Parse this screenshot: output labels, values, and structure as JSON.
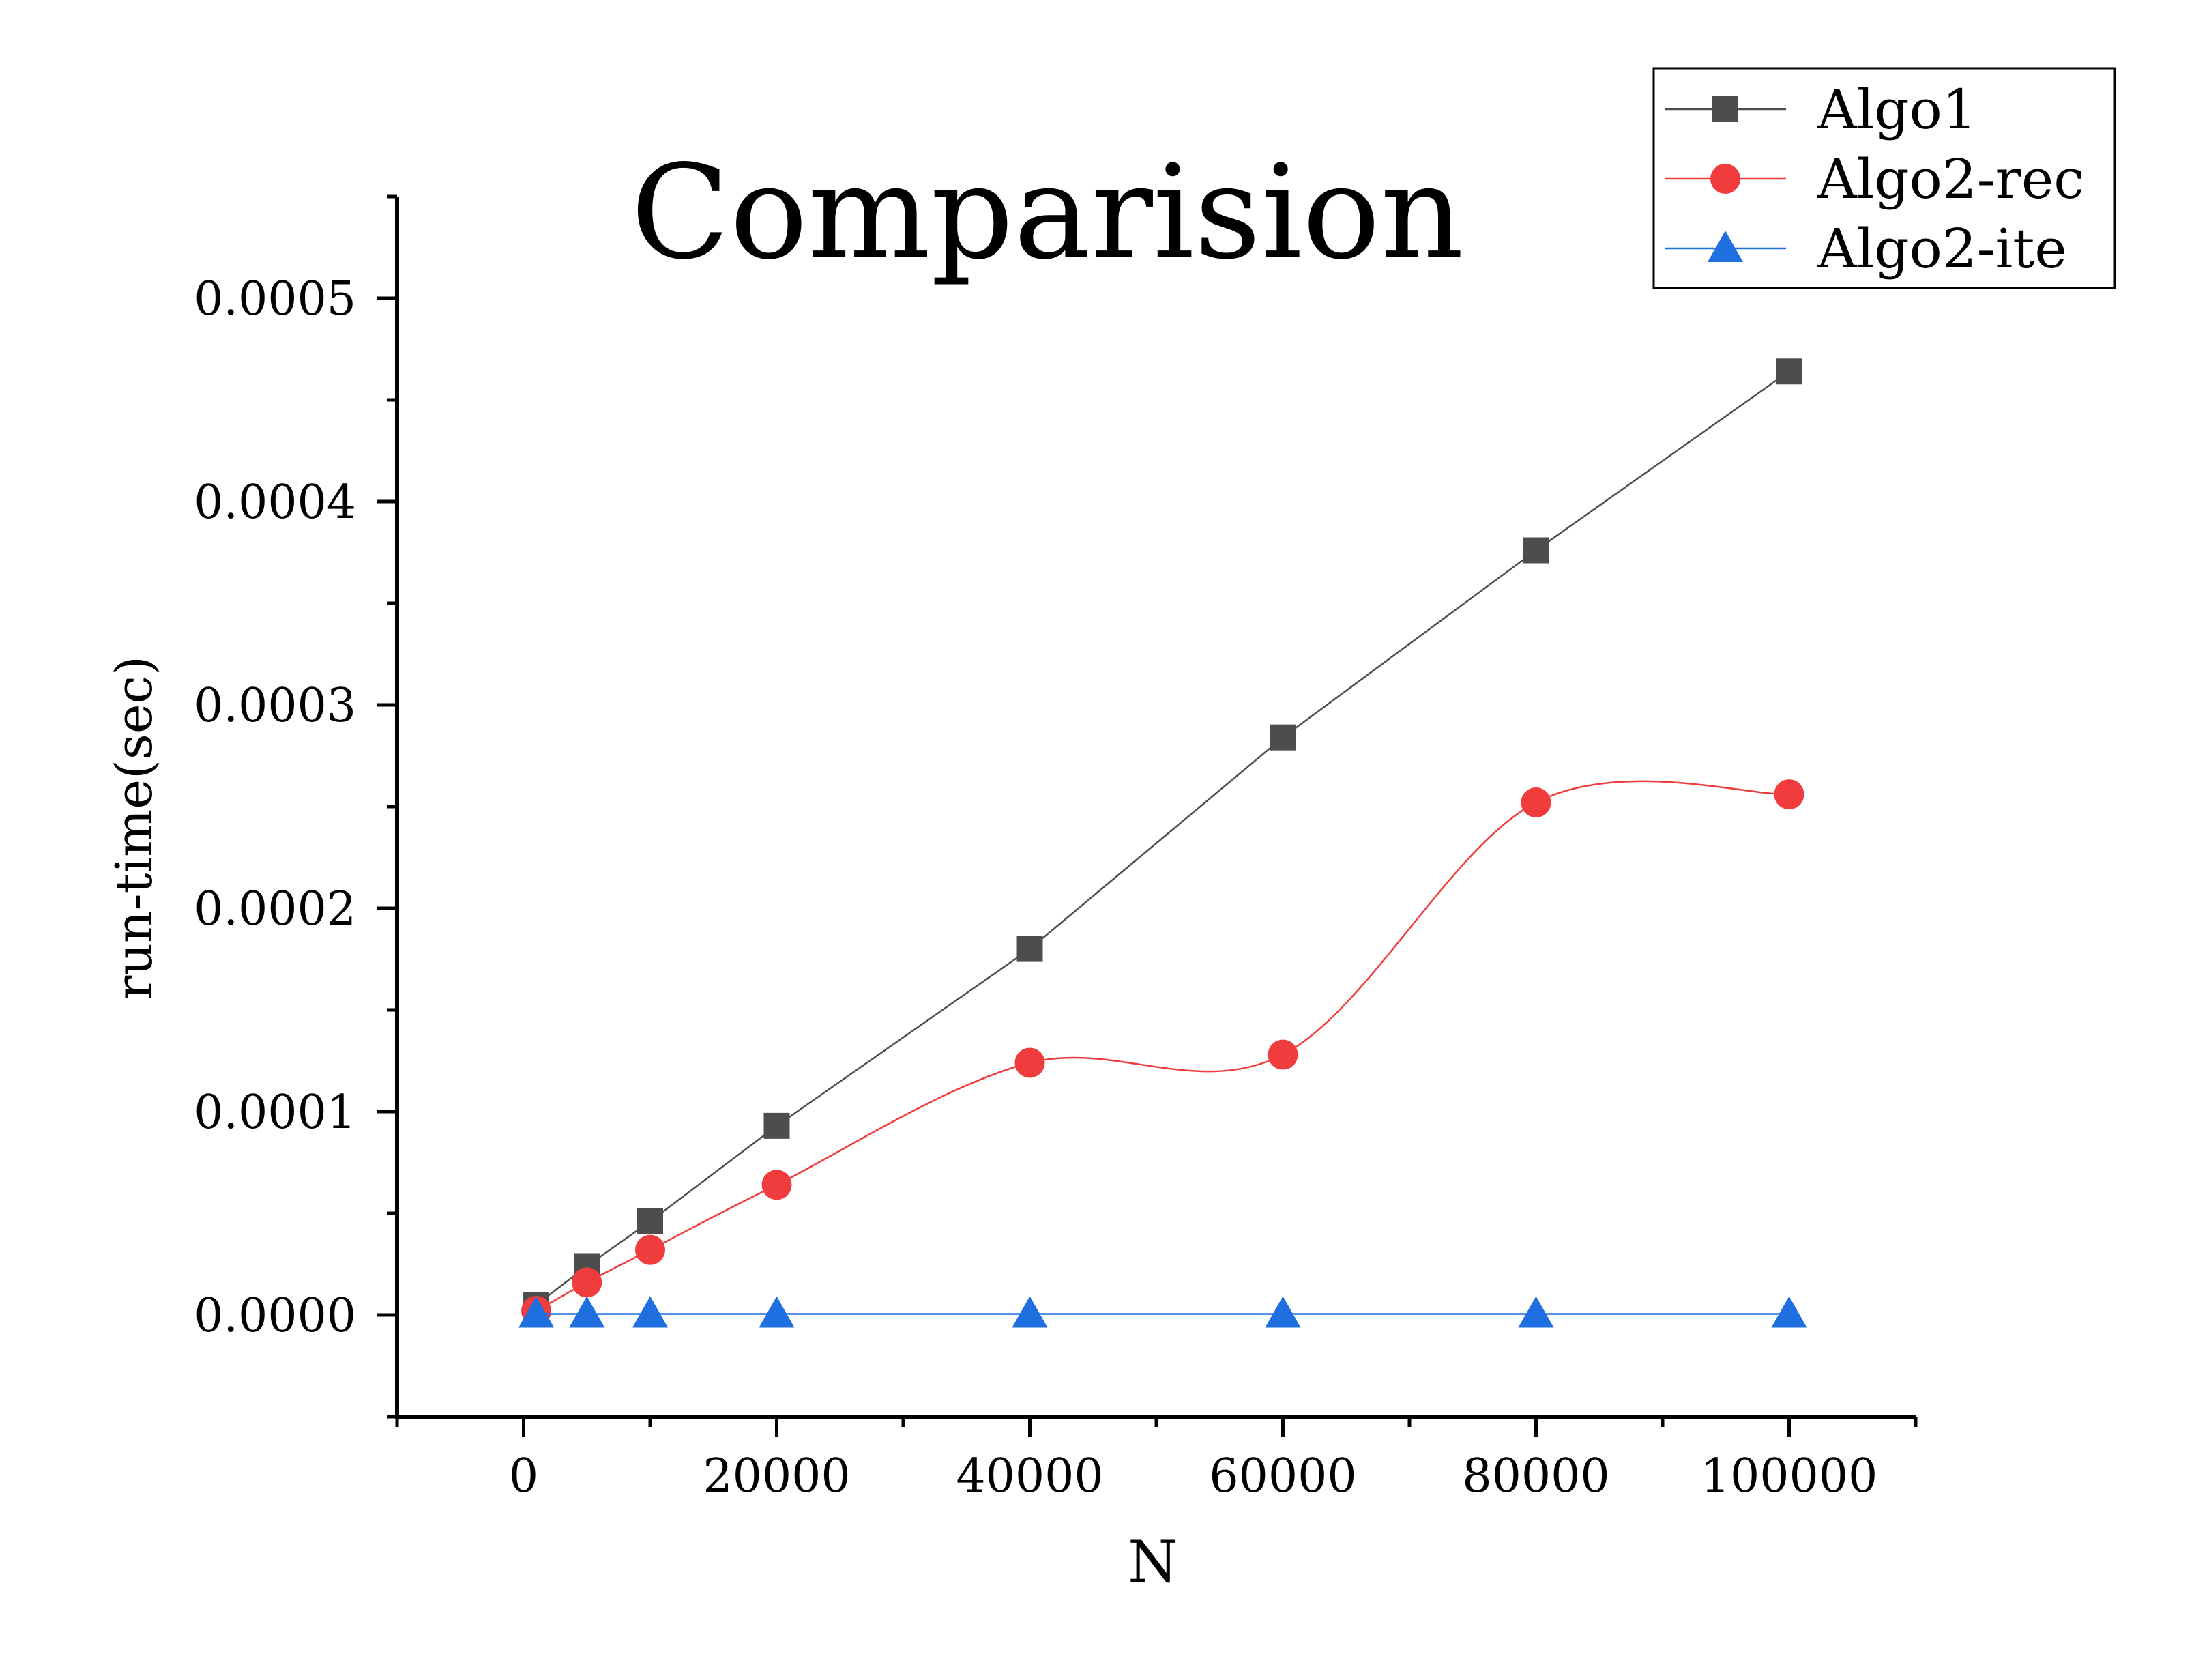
{
  "chart_data": {
    "type": "line",
    "title": "Comparision",
    "xlabel": "N",
    "ylabel": "run-time(sec)",
    "xlim": [
      -10000,
      110000
    ],
    "ylim": [
      -5e-05,
      0.00055
    ],
    "x_ticks": [
      0,
      20000,
      40000,
      60000,
      80000,
      100000
    ],
    "x_tick_labels": [
      "0",
      "20000",
      "40000",
      "60000",
      "80000",
      "100000"
    ],
    "y_ticks": [
      0,
      0.0001,
      0.0002,
      0.0003,
      0.0004,
      0.0005
    ],
    "y_tick_labels": [
      "0.0000",
      "0.0001",
      "0.0002",
      "0.0003",
      "0.0004",
      "0.0005"
    ],
    "grid": false,
    "legend_position": "top-right",
    "x": [
      1000,
      5000,
      10000,
      20000,
      40000,
      60000,
      80000,
      100000
    ],
    "series": [
      {
        "name": "Algo1",
        "color": "#4d4d4d",
        "marker": "square",
        "smooth": false,
        "values": [
          5e-06,
          2.4e-05,
          4.6e-05,
          9.3e-05,
          0.00018,
          0.000284,
          0.000376,
          0.000464
        ]
      },
      {
        "name": "Algo2-rec",
        "color": "#f03c3c",
        "marker": "circle",
        "smooth": true,
        "values": [
          2e-06,
          1.6e-05,
          3.2e-05,
          6.4e-05,
          0.000124,
          0.000128,
          0.000252,
          0.000256
        ]
      },
      {
        "name": "Algo2-ite",
        "color": "#1f6fe0",
        "marker": "triangle",
        "smooth": false,
        "values": [
          5e-07,
          5e-07,
          5e-07,
          5e-07,
          5e-07,
          5e-07,
          5e-07,
          5e-07
        ]
      }
    ]
  }
}
